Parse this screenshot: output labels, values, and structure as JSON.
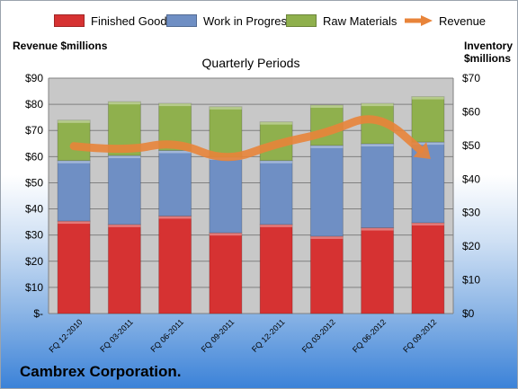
{
  "chart_data": {
    "type": "bar",
    "stacked": true,
    "title": "Quarterly Periods",
    "ylabel_left": "Revenue $millions",
    "ylabel_right": "Inventory $millions",
    "categories": [
      "FQ 12-2010",
      "FQ 03-2011",
      "FQ 06-2011",
      "FQ 09-2011",
      "FQ 12-2011",
      "FQ 03-2012",
      "FQ 06-2012",
      "FQ 09-2012"
    ],
    "left_ticks": [
      "$-",
      "$10",
      "$20",
      "$30",
      "$40",
      "$50",
      "$60",
      "$70",
      "$80",
      "$90"
    ],
    "right_ticks": [
      "$0",
      "$10",
      "$20",
      "$30",
      "$40",
      "$50",
      "$60",
      "$70"
    ],
    "ylim_left": [
      0,
      90
    ],
    "ylim_right": [
      0,
      70
    ],
    "series": [
      {
        "name": "Finished Goods",
        "axis": "right",
        "color": "#d63232",
        "values": [
          27.5,
          26.5,
          29,
          24,
          26.5,
          23,
          25.5,
          27
        ]
      },
      {
        "name": "Work in Progress",
        "axis": "right",
        "color": "#6f8fc4",
        "values": [
          18,
          20.5,
          19.5,
          22.5,
          19,
          27,
          25,
          24
        ]
      },
      {
        "name": "Raw Materials",
        "axis": "right",
        "color": "#8fb04d",
        "values": [
          12,
          16,
          14,
          15,
          11.5,
          12,
          12,
          13.5
        ]
      }
    ],
    "line": {
      "name": "Revenue",
      "axis": "left",
      "color": "#e8843a",
      "values": [
        64,
        62,
        66,
        58,
        65,
        69,
        77,
        60
      ]
    },
    "grid": true,
    "legend_position": "top"
  },
  "company": "Cambrex Corporation."
}
